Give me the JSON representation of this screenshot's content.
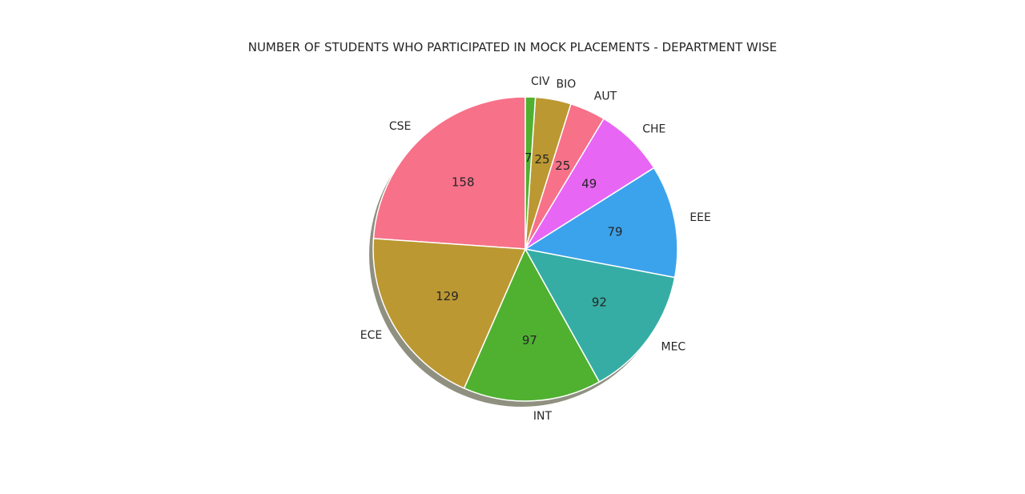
{
  "chart_data": {
    "type": "pie",
    "title": "NUMBER OF STUDENTS WHO PARTICIPATED IN MOCK PLACEMENTS - DEPARTMENT WISE",
    "start_angle_deg": 90,
    "direction": "counterclockwise",
    "shadow": true,
    "slices": [
      {
        "label": "CSE",
        "value": 158,
        "value_label": "158",
        "color": "#f77189"
      },
      {
        "label": "ECE",
        "value": 129,
        "value_label": "129",
        "color": "#bb9832"
      },
      {
        "label": "INT",
        "value": 97,
        "value_label": "97",
        "color": "#50b131"
      },
      {
        "label": "MEC",
        "value": 92,
        "value_label": "92",
        "color": "#36ada4"
      },
      {
        "label": "EEE",
        "value": 79,
        "value_label": "79",
        "color": "#3ba3ec"
      },
      {
        "label": "CHE",
        "value": 49,
        "value_label": "49",
        "color": "#e866f4"
      },
      {
        "label": "AUT",
        "value": 25,
        "value_label": "25",
        "color": "#f77189"
      },
      {
        "label": "BIO",
        "value": 25,
        "value_label": "25",
        "color": "#bb9832"
      },
      {
        "label": "CIV",
        "value": 7,
        "value_label": "7",
        "color": "#50b131"
      }
    ]
  }
}
